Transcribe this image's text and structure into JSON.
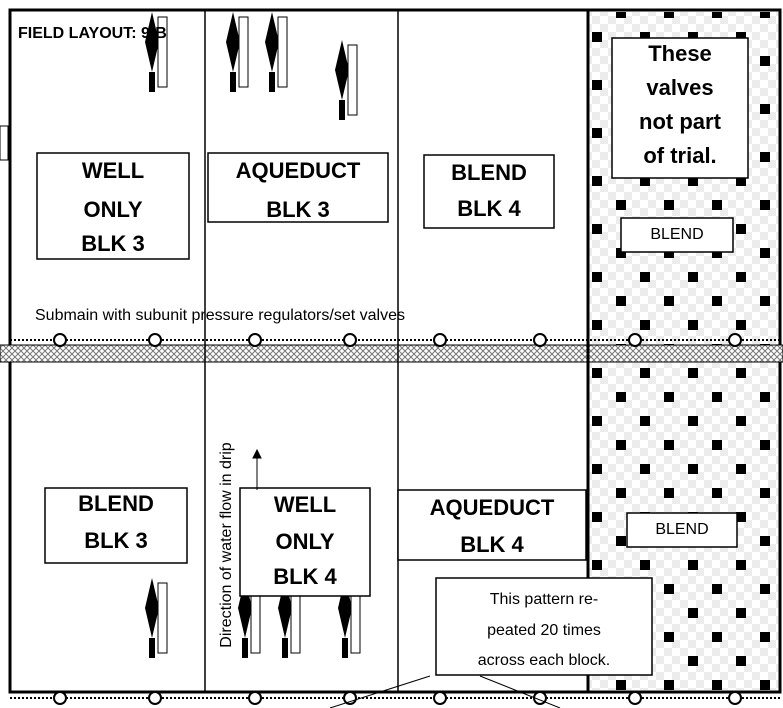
{
  "header": {
    "title": "FIELD LAYOUT: 9-B"
  },
  "blocks": {
    "top": [
      {
        "label": [
          "WELL",
          "ONLY",
          "BLK 3"
        ]
      },
      {
        "label": [
          "AQUEDUCT",
          "BLK 3"
        ]
      },
      {
        "label": [
          "BLEND",
          "BLK 4"
        ]
      }
    ],
    "bottom": [
      {
        "label": [
          "BLEND",
          "BLK 3"
        ]
      },
      {
        "label": [
          "WELL",
          "ONLY",
          "BLK 4"
        ]
      },
      {
        "label": [
          "AQUEDUCT",
          "BLK 4"
        ]
      }
    ]
  },
  "notes": {
    "not_in_trial": [
      "These",
      "valves",
      "not part",
      "of trial."
    ],
    "blend_top": "BLEND",
    "blend_bottom": "BLEND",
    "submain": "Submain with subunit pressure regulators/set valves",
    "flow_direction": "Direction of water flow in drip",
    "pattern": [
      "This pattern re-",
      "peated 20 times",
      "across each block."
    ]
  }
}
